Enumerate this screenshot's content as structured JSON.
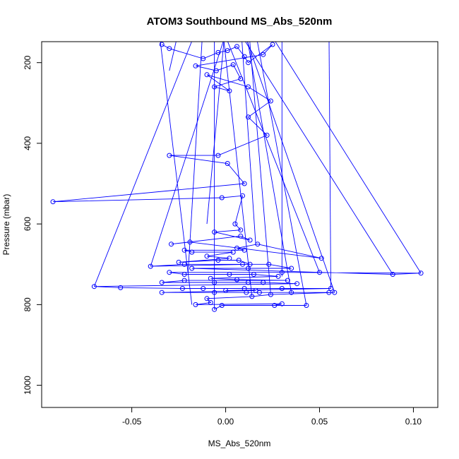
{
  "chart_data": {
    "type": "line",
    "title": "ATOM3 Southbound MS_Abs_520nm",
    "xlabel": "MS_Abs_520nm",
    "ylabel": "Pressure (mbar)",
    "xlim": [
      -0.098,
      0.113
    ],
    "ylim": [
      1055,
      148
    ],
    "y_reversed": true,
    "x_ticks": [
      -0.05,
      0.0,
      0.05,
      0.1
    ],
    "x_tick_labels": [
      "-0.05",
      "0.00",
      "0.05",
      "0.10"
    ],
    "y_ticks": [
      200,
      400,
      600,
      800,
      1000
    ],
    "y_tick_labels": [
      "200",
      "400",
      "600",
      "800",
      "1000"
    ],
    "grid": false,
    "marker": "open-circle",
    "colors": {
      "series": "#0000ff",
      "axis": "#000000",
      "background": "#ffffff"
    },
    "series": [
      {
        "values": [
          [
            -0.034,
            155
          ],
          [
            -0.03,
            165
          ],
          [
            -0.012,
            190
          ],
          [
            -0.004,
            175
          ],
          [
            0.001,
            170
          ],
          [
            0.006,
            160
          ],
          [
            0.01,
            185
          ],
          [
            0.012,
            200
          ],
          [
            0.025,
            155
          ],
          [
            0.02,
            180
          ],
          [
            -0.016,
            208
          ],
          [
            -0.005,
            220
          ],
          [
            0.004,
            205
          ],
          [
            0.008,
            240
          ],
          [
            -0.006,
            260
          ],
          [
            0.002,
            270
          ],
          [
            -0.01,
            230
          ],
          [
            0.012,
            260
          ],
          [
            0.024,
            295
          ],
          [
            0.012,
            335
          ],
          [
            0.022,
            380
          ],
          [
            -0.004,
            430
          ],
          [
            -0.03,
            430
          ],
          [
            0.001,
            450
          ],
          [
            0.01,
            500
          ],
          [
            -0.092,
            545
          ],
          [
            -0.002,
            535
          ],
          [
            0.009,
            530
          ],
          [
            0.005,
            600
          ],
          [
            0.008,
            615
          ],
          [
            -0.006,
            620
          ],
          [
            0.013,
            640
          ],
          [
            0.008,
            630
          ],
          [
            -0.029,
            650
          ],
          [
            -0.019,
            645
          ],
          [
            0.051,
            685
          ],
          [
            0.017,
            650
          ],
          [
            0.006,
            660
          ],
          [
            0.01,
            665
          ],
          [
            -0.022,
            665
          ],
          [
            -0.018,
            670
          ],
          [
            0.004,
            670
          ],
          [
            -0.01,
            680
          ],
          [
            0.002,
            685
          ],
          [
            -0.025,
            695
          ],
          [
            -0.004,
            690
          ],
          [
            0.007,
            690
          ],
          [
            0.013,
            700
          ],
          [
            -0.04,
            705
          ],
          [
            -0.022,
            700
          ],
          [
            0.009,
            700
          ],
          [
            0.023,
            700
          ],
          [
            0.035,
            710
          ],
          [
            0.012,
            710
          ],
          [
            -0.018,
            710
          ],
          [
            0.05,
            720
          ],
          [
            0.089,
            725
          ],
          [
            0.104,
            722
          ],
          [
            0.03,
            720
          ],
          [
            -0.03,
            720
          ],
          [
            -0.022,
            725
          ],
          [
            0.002,
            725
          ],
          [
            0.015,
            725
          ],
          [
            0.028,
            730
          ],
          [
            -0.008,
            735
          ],
          [
            0.006,
            738
          ],
          [
            0.033,
            740
          ],
          [
            -0.022,
            740
          ],
          [
            -0.034,
            745
          ],
          [
            -0.006,
            745
          ],
          [
            0.012,
            745
          ],
          [
            0.02,
            745
          ],
          [
            0.038,
            748
          ],
          [
            -0.07,
            755
          ],
          [
            -0.056,
            758
          ],
          [
            -0.023,
            760
          ],
          [
            -0.012,
            760
          ],
          [
            0.01,
            760
          ],
          [
            0.03,
            760
          ],
          [
            0.056,
            760
          ],
          [
            0.0,
            765
          ],
          [
            0.016,
            765
          ],
          [
            -0.034,
            770
          ],
          [
            -0.006,
            770
          ],
          [
            0.011,
            770
          ],
          [
            0.018,
            770
          ],
          [
            0.035,
            770
          ],
          [
            0.055,
            770
          ],
          [
            0.058,
            770
          ],
          [
            0.024,
            775
          ],
          [
            0.014,
            780
          ],
          [
            -0.01,
            785
          ],
          [
            -0.008,
            795
          ],
          [
            -0.016,
            800
          ],
          [
            0.03,
            798
          ],
          [
            0.026,
            802
          ],
          [
            0.043,
            802
          ],
          [
            -0.002,
            802
          ],
          [
            -0.006,
            812
          ]
        ]
      }
    ]
  }
}
